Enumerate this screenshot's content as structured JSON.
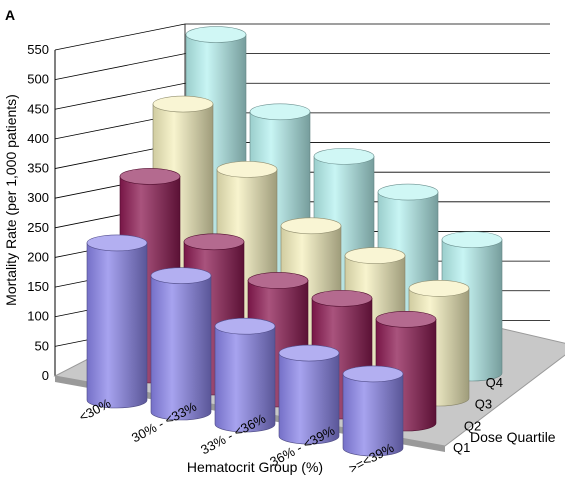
{
  "panel_label": "A",
  "chart_data": {
    "type": "bar",
    "subtype": "3d-cylinder",
    "title": "",
    "ylabel": "Mortality Rate (per 1,000 patients)",
    "xlabel": "Hematocrit Group (%)",
    "zlabel": "Dose Quartile",
    "ylim": [
      0,
      550
    ],
    "yticks": [
      "550",
      "500",
      "450",
      "400",
      "350",
      "300",
      "250",
      "200",
      "150",
      "100",
      "50",
      "0"
    ],
    "categories": [
      "<30%",
      "30% - <33%",
      "33% - <36%",
      "36% - <39%",
      ">=<39%"
    ],
    "depth_categories": [
      "Q1",
      "Q2",
      "Q3",
      "Q4"
    ],
    "series": [
      {
        "name": "Q1",
        "color": "#8a84ea",
        "values": [
          265,
          230,
          165,
          140,
          125
        ]
      },
      {
        "name": "Q2",
        "color": "#8c1a52",
        "values": [
          335,
          245,
          200,
          190,
          175
        ]
      },
      {
        "name": "Q3",
        "color": "#f5f0bd",
        "values": [
          415,
          325,
          250,
          220,
          185
        ]
      },
      {
        "name": "Q4",
        "color": "#b6f2f0",
        "values": [
          490,
          380,
          325,
          285,
          225
        ]
      }
    ],
    "grid": true,
    "legend": "none"
  }
}
